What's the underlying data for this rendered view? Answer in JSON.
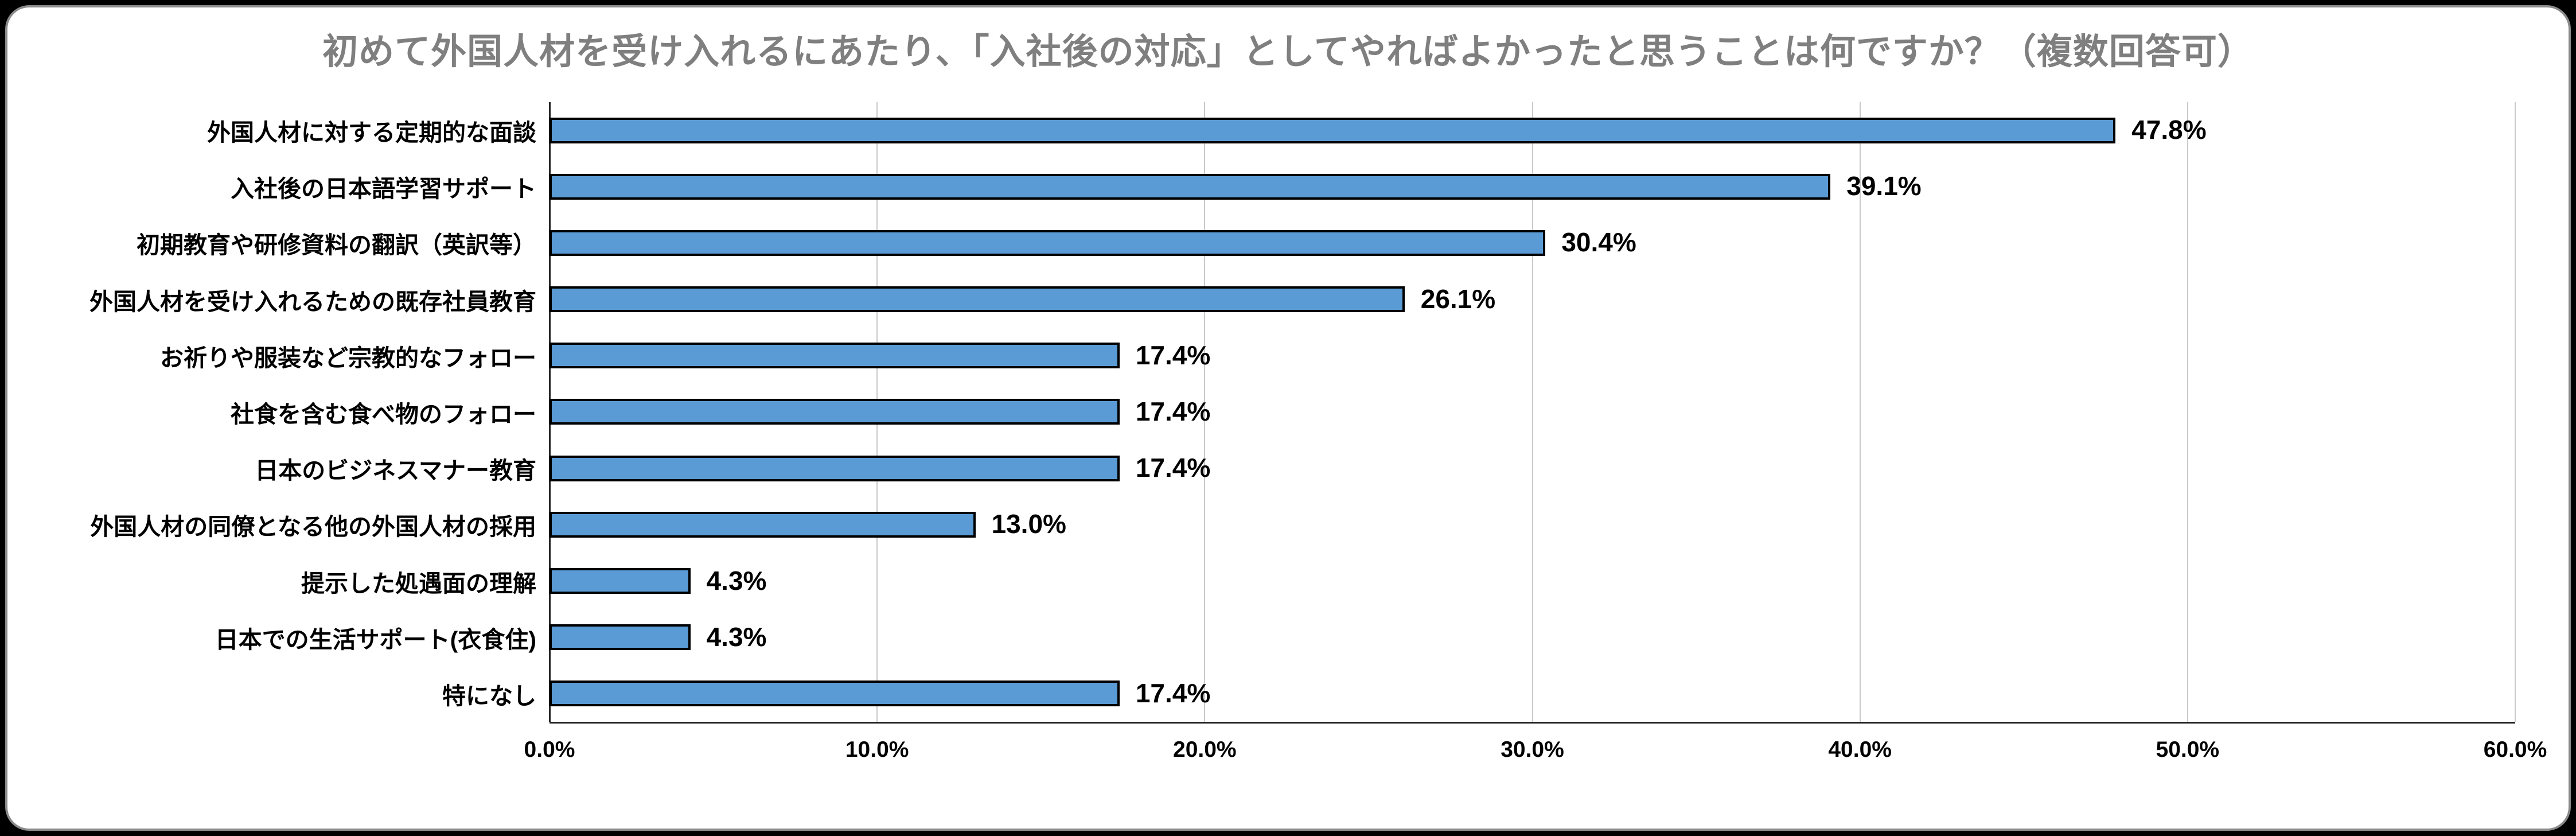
{
  "chart_data": {
    "type": "bar",
    "orientation": "horizontal",
    "title": "初めて外国人材を受け入れるにあたり、「入社後の対応」としてやればよかったと思うことは何ですか？（複数回答可）",
    "categories": [
      "外国人材に対する定期的な面談",
      "入社後の日本語学習サポート",
      "初期教育や研修資料の翻訳（英訳等）",
      "外国人材を受け入れるための既存社員教育",
      "お祈りや服装など宗教的なフォロー",
      "社食を含む食べ物のフォロー",
      "日本のビジネスマナー教育",
      "外国人材の同僚となる他の外国人材の採用",
      "提示した処遇面の理解",
      "日本での生活サポート(衣食住)",
      "特になし"
    ],
    "values": [
      47.8,
      39.1,
      30.4,
      26.1,
      17.4,
      17.4,
      17.4,
      13.0,
      4.3,
      4.3,
      17.4
    ],
    "value_labels": [
      "47.8%",
      "39.1%",
      "30.4%",
      "26.1%",
      "17.4%",
      "17.4%",
      "17.4%",
      "13.0%",
      "4.3%",
      "4.3%",
      "17.4%"
    ],
    "x_ticks": [
      "0.0%",
      "10.0%",
      "20.0%",
      "30.0%",
      "40.0%",
      "50.0%",
      "60.0%"
    ],
    "xlim": [
      0,
      60
    ],
    "xlabel": "",
    "ylabel": "",
    "grid": true,
    "legend": false,
    "bar_color": "#5b9bd5",
    "bar_border_color": "#000000",
    "title_color": "#7f7f7f",
    "gridline_color": "#c9c9c9"
  }
}
